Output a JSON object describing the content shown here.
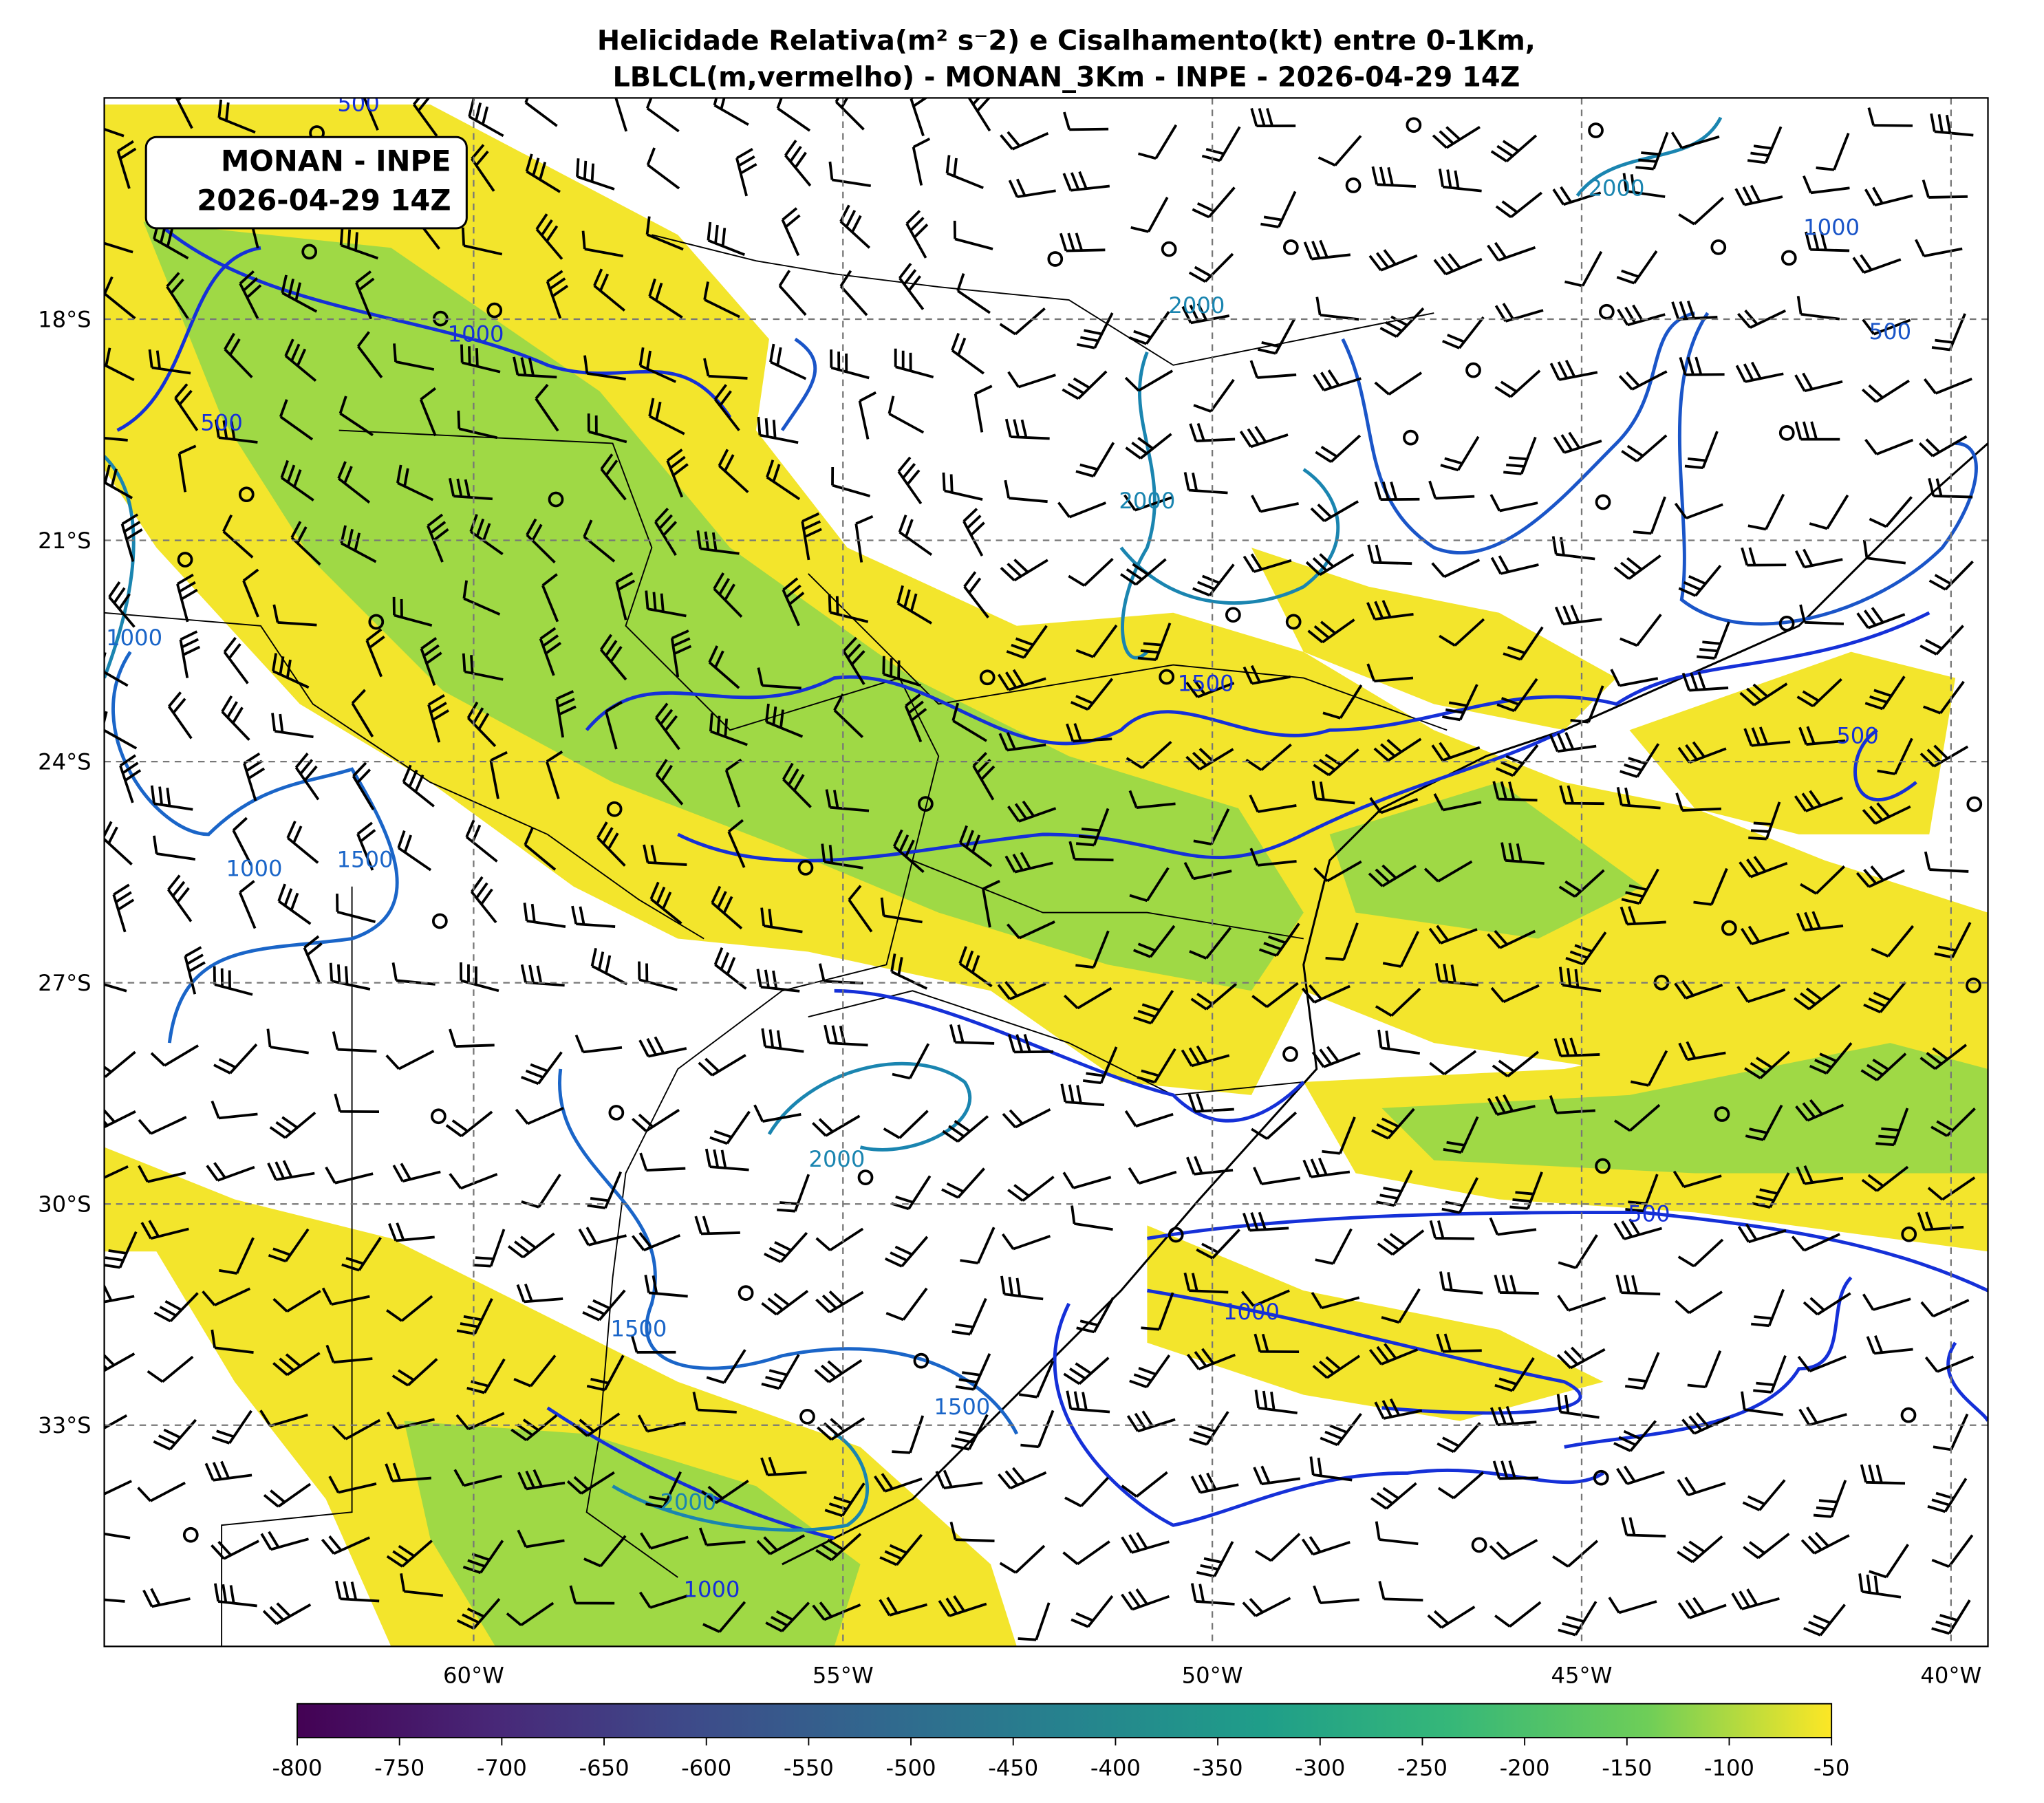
{
  "map": {
    "title_line1": "Helicidade Relativa(m² s⁻2) e Cisalhamento(kt) entre 0-1Km,",
    "title_line2": "LBLCL(m,vermelho) - MONAN_3Km - INPE - 2026-04-29 14Z",
    "box_line1": "MONAN - INPE",
    "box_line2": "2026-04-29 14Z",
    "lon_range": [
      -65,
      -39.5
    ],
    "lat_range": [
      -36,
      -15
    ],
    "lon_ticks": [
      {
        "value": -60,
        "label": "60°W"
      },
      {
        "value": -55,
        "label": "55°W"
      },
      {
        "value": -50,
        "label": "50°W"
      },
      {
        "value": -45,
        "label": "45°W"
      },
      {
        "value": -40,
        "label": "40°W"
      }
    ],
    "lat_ticks": [
      {
        "value": -18,
        "label": "18°S"
      },
      {
        "value": -21,
        "label": "21°S"
      },
      {
        "value": -24,
        "label": "24°S"
      },
      {
        "value": -27,
        "label": "27°S"
      },
      {
        "value": -30,
        "label": "30°S"
      },
      {
        "value": -33,
        "label": "33°S"
      }
    ],
    "contour_labels": [
      500,
      1000,
      500,
      1000,
      2000,
      2000,
      1000,
      500,
      2000,
      1500,
      1000,
      1500,
      500,
      2000,
      1000,
      1500,
      500,
      1500,
      2000,
      1000
    ],
    "colorbar": {
      "range": [
        -800,
        -50
      ],
      "ticks": [
        -800,
        -750,
        -700,
        -650,
        -600,
        -550,
        -500,
        -450,
        -400,
        -350,
        -300,
        -250,
        -200,
        -150,
        -100,
        -50
      ]
    }
  }
}
